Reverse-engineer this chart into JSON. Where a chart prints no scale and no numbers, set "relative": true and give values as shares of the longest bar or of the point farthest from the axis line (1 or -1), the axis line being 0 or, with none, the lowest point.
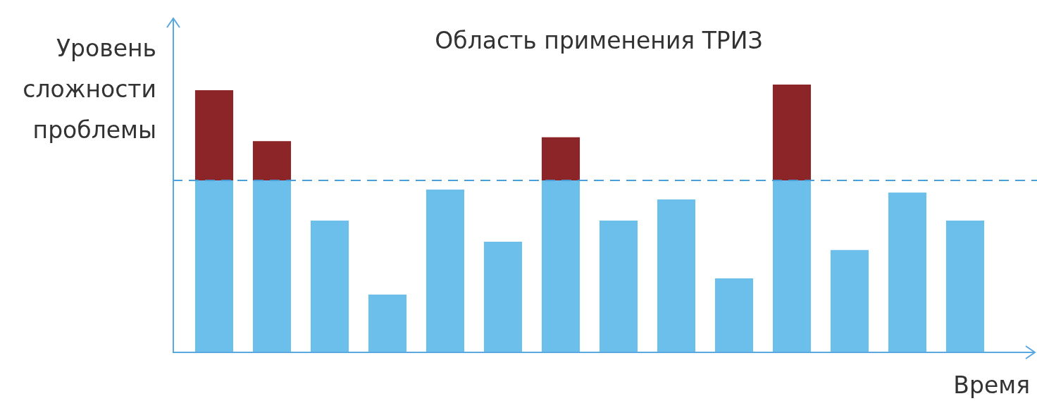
{
  "chart_data": {
    "type": "bar",
    "title": "Область применения ТРИЗ",
    "ylabel": "Уровень сложности проблемы",
    "xlabel": "Время",
    "relative": true,
    "stacked": true,
    "categories": [
      null,
      null,
      null,
      null,
      null,
      null,
      null,
      null,
      null,
      null,
      null,
      null,
      null,
      null
    ],
    "series": [
      {
        "color": "#6dbfeb",
        "values": [
          0.642,
          0.642,
          0.492,
          0.216,
          0.608,
          0.413,
          0.642,
          0.492,
          0.571,
          0.276,
          0.642,
          0.382,
          0.597,
          0.492
        ]
      },
      {
        "color": "#8b2528",
        "values": [
          0.337,
          0.147,
          null,
          null,
          null,
          null,
          0.161,
          null,
          null,
          null,
          0.358,
          null,
          null,
          null
        ]
      }
    ],
    "ref_lines": [
      {
        "axis": "y",
        "value": 0.642,
        "color": "#4a9fd8",
        "line_style": "dashed"
      }
    ]
  }
}
